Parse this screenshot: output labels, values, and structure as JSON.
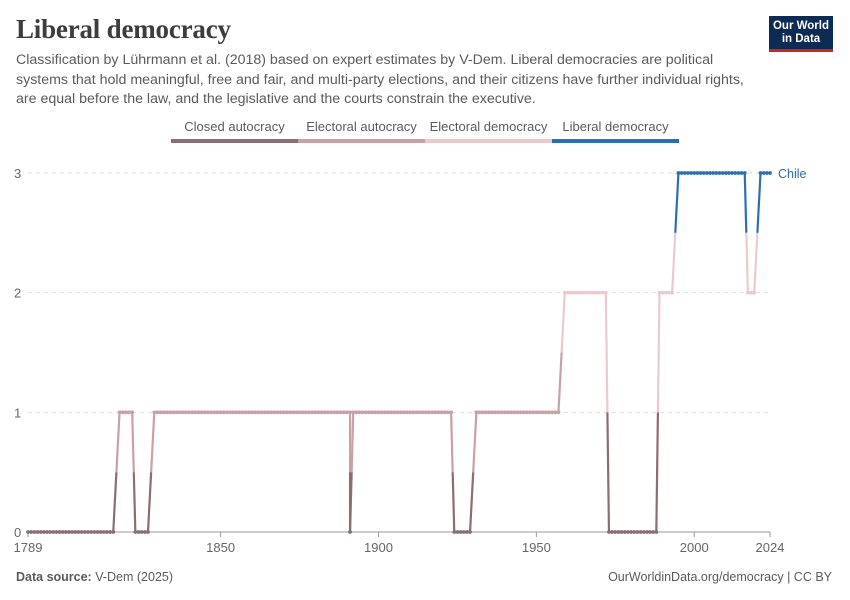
{
  "header": {
    "title": "Liberal democracy",
    "subtitle": "Classification by Lührmann et al. (2018) based on expert estimates by V-Dem. Liberal democracies are political systems that hold meaningful, free and fair, and multi-party elections, and their citizens have further individual rights, are equal before the law, and the legislative and the courts constrain the executive.",
    "logo_line1": "Our World",
    "logo_line2": "in Data"
  },
  "legend": [
    {
      "label": "Closed autocracy",
      "color": "#8c6d71"
    },
    {
      "label": "Electoral autocracy",
      "color": "#c9a1a5"
    },
    {
      "label": "Electoral democracy",
      "color": "#ecc9cc"
    },
    {
      "label": "Liberal democracy",
      "color": "#2c6fb0"
    }
  ],
  "footer": {
    "source_label": "Data source:",
    "source_value": "V-Dem (2025)",
    "url_license": "OurWorldinData.org/democracy | CC BY"
  },
  "chart_data": {
    "type": "line",
    "title": "Liberal democracy",
    "series_name": "Chile",
    "xlim": [
      1789,
      2024
    ],
    "ylim": [
      0,
      3
    ],
    "x_ticks": [
      "1789",
      "1850",
      "1900",
      "1950",
      "2000",
      "2024"
    ],
    "y_ticks": [
      "0",
      "1",
      "2",
      "3"
    ],
    "segments": [
      {
        "start": 1789,
        "end": 1816,
        "value": 0
      },
      {
        "start": 1818,
        "end": 1822,
        "value": 1
      },
      {
        "start": 1823,
        "end": 1827,
        "value": 0
      },
      {
        "start": 1829,
        "end": 1891,
        "value": 1
      },
      {
        "start": 1891,
        "end": 1891,
        "value": 0
      },
      {
        "start": 1892,
        "end": 1923,
        "value": 1
      },
      {
        "start": 1924,
        "end": 1929,
        "value": 0
      },
      {
        "start": 1931,
        "end": 1957,
        "value": 1
      },
      {
        "start": 1959,
        "end": 1972,
        "value": 2
      },
      {
        "start": 1973,
        "end": 1988,
        "value": 0
      },
      {
        "start": 1989,
        "end": 1993,
        "value": 2
      },
      {
        "start": 1995,
        "end": 2016,
        "value": 3
      },
      {
        "start": 2017,
        "end": 2019,
        "value": 2
      },
      {
        "start": 2021,
        "end": 2024,
        "value": 3
      }
    ]
  }
}
